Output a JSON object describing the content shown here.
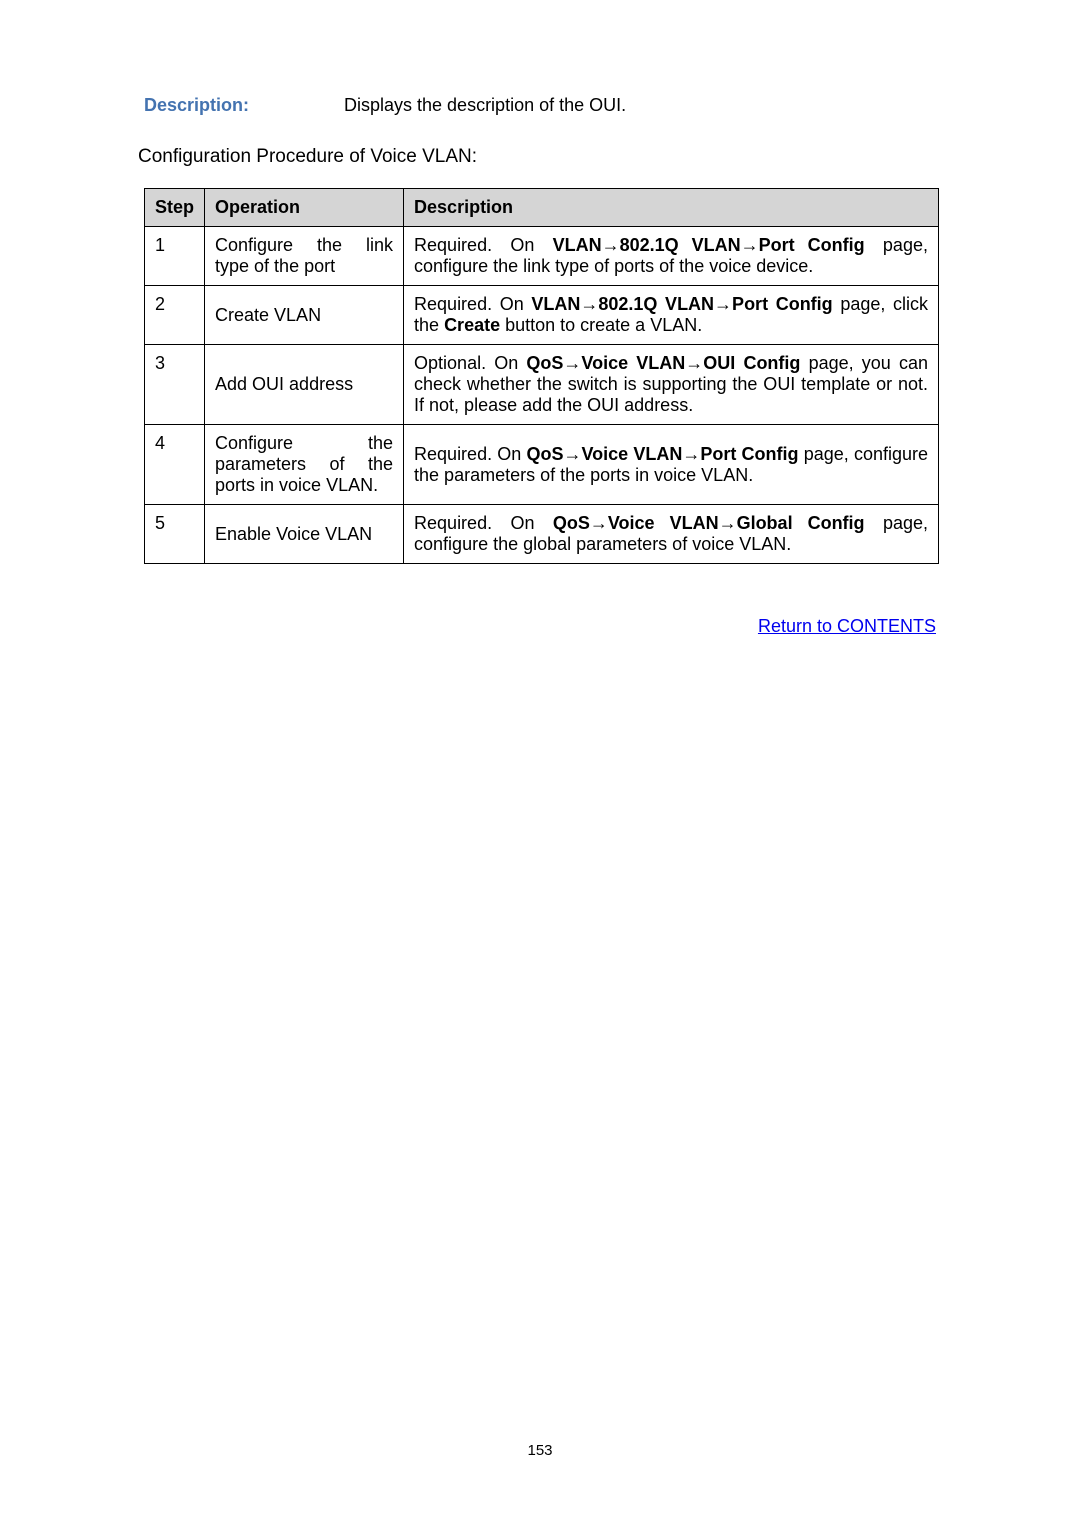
{
  "field": {
    "label": "Description:",
    "value": "Displays the description of the OUI."
  },
  "section_title": "Configuration Procedure of Voice VLAN:",
  "table": {
    "headers": {
      "step": "Step",
      "operation": "Operation",
      "description": "Description"
    },
    "rows": [
      {
        "step": "1",
        "op_line1_a": "Configure",
        "op_line1_b": "the",
        "op_line1_c": "link",
        "op_line2": "type of the port",
        "desc_prefix": "Required.",
        "desc_on": "On",
        "desc_bold": "VLAN→802.1Q VLAN→Port Config",
        "desc_suffix1": "page,",
        "desc_line2": "configure the link type of ports of the voice device."
      },
      {
        "step": "2",
        "operation": "Create VLAN",
        "d_l1_a": "Required. On ",
        "d_l1_bold": "VLAN→802.1Q VLAN→Port Config",
        "d_l1_b": " page, click",
        "d_l2_a": "the ",
        "d_l2_bold": "Create",
        "d_l2_b": " button to create a VLAN."
      },
      {
        "step": "3",
        "operation": "Add OUI address",
        "d_l1_a": "Optional. On ",
        "d_l1_bold": "QoS→Voice VLAN→OUI Config",
        "d_l1_b": " page, you can",
        "d_l2": "check whether the switch is supporting the OUI template or not. If not, please add the OUI address."
      },
      {
        "step": "4",
        "op_l1_a": "Configure",
        "op_l1_b": "the",
        "op_l2_a": "parameters",
        "op_l2_b": "of",
        "op_l2_c": "the",
        "op_l3": "ports in voice VLAN.",
        "d_l1_a": "Required. On ",
        "d_l1_bold": "QoS→Voice VLAN→Port Config",
        "d_l1_b": " page, configure",
        "d_l2": "the parameters of the ports in voice VLAN."
      },
      {
        "step": "5",
        "operation": "Enable Voice VLAN",
        "d_l1_a": "Required.",
        "d_l1_b": "On",
        "d_l1_bold": "QoS→Voice VLAN→Global Config",
        "d_l1_c": "page,",
        "d_l2": "configure the global parameters of voice VLAN."
      }
    ]
  },
  "return_link": "Return to CONTENTS",
  "page_number": "153"
}
